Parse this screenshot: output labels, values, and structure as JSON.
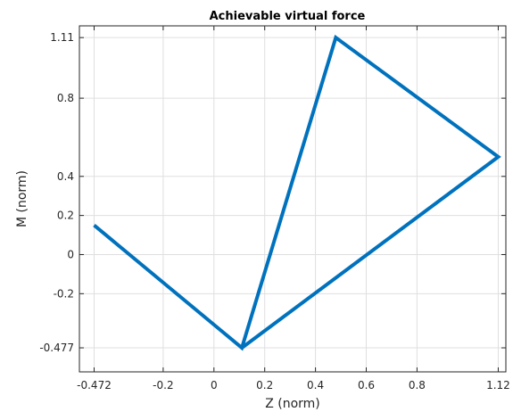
{
  "chart_data": {
    "type": "line",
    "title": "Achievable virtual force",
    "xlabel": "Z (norm)",
    "ylabel": "M (norm)",
    "xlim": [
      -0.53,
      1.15
    ],
    "ylim": [
      -0.6,
      1.17
    ],
    "xticks": [
      -0.472,
      -0.2,
      0,
      0.2,
      0.4,
      0.6,
      0.8,
      1.12
    ],
    "xtick_labels": [
      "-0.472",
      "-0.2",
      "0",
      "0.2",
      "0.4",
      "0.6",
      "0.8",
      "1.12"
    ],
    "yticks": [
      -0.477,
      -0.2,
      0,
      0.2,
      0.4,
      0.8,
      1.11
    ],
    "ytick_labels": [
      "-0.477",
      "-0.2",
      "0",
      "0.2",
      "0.4",
      "0.8",
      "1.11"
    ],
    "grid": true,
    "series": [
      {
        "color": "#0072bd",
        "x": [
          -0.472,
          0.11,
          0.48,
          1.12,
          0.11,
          -0.472
        ],
        "y": [
          0.15,
          -0.477,
          1.11,
          0.5,
          -0.477,
          0.15
        ],
        "closed": true
      }
    ]
  }
}
